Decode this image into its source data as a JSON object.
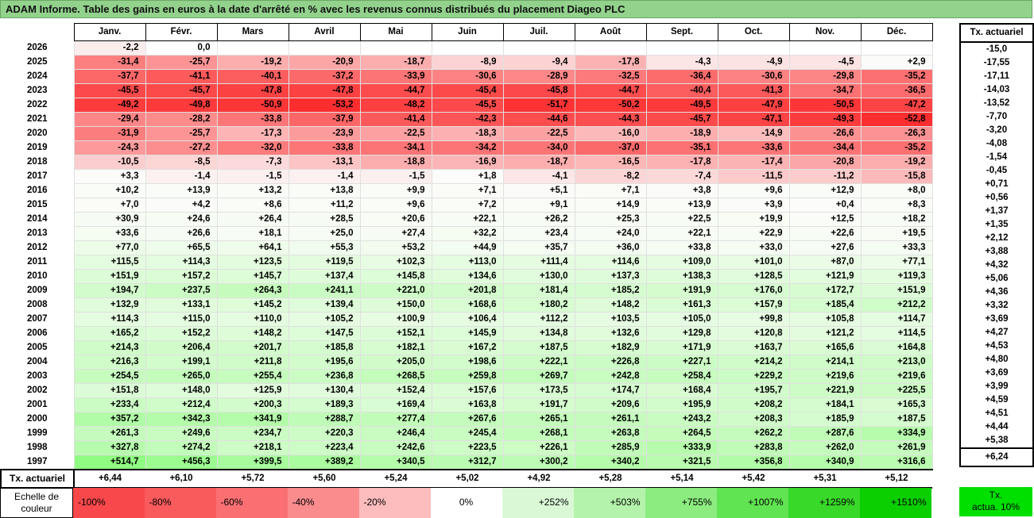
{
  "title": "ADAM Informe. Table des gains en euros à la date d'arrêté en % avec les revenus connus distribués du placement Diageo PLC",
  "months": [
    "Janv.",
    "Févr.",
    "Mars",
    "Avril",
    "Mai",
    "Juin",
    "Juil.",
    "Août",
    "Sept.",
    "Oct.",
    "Nov.",
    "Déc."
  ],
  "tx_header": "Tx. actuariel",
  "rows": [
    {
      "year": "2026",
      "vals": [
        "-2,2",
        "0,0",
        "",
        "",
        "",
        "",
        "",
        "",
        "",
        "",
        "",
        ""
      ],
      "tx": "-15,0"
    },
    {
      "year": "2025",
      "vals": [
        "-31,4",
        "-25,7",
        "-19,2",
        "-20,9",
        "-18,7",
        "-8,9",
        "-9,4",
        "-17,8",
        "-4,3",
        "-4,9",
        "-4,5",
        "+2,9"
      ],
      "tx": "-17,55"
    },
    {
      "year": "2024",
      "vals": [
        "-37,7",
        "-41,1",
        "-40,1",
        "-37,2",
        "-33,9",
        "-30,6",
        "-28,9",
        "-32,5",
        "-36,4",
        "-30,6",
        "-29,8",
        "-35,2"
      ],
      "tx": "-17,11"
    },
    {
      "year": "2023",
      "vals": [
        "-45,5",
        "-45,7",
        "-47,8",
        "-47,8",
        "-44,7",
        "-45,4",
        "-45,8",
        "-44,7",
        "-40,4",
        "-41,3",
        "-34,7",
        "-36,5"
      ],
      "tx": "-14,03"
    },
    {
      "year": "2022",
      "vals": [
        "-49,2",
        "-49,8",
        "-50,9",
        "-53,2",
        "-48,2",
        "-45,5",
        "-51,7",
        "-50,2",
        "-49,5",
        "-47,9",
        "-50,5",
        "-47,2"
      ],
      "tx": "-13,52"
    },
    {
      "year": "2021",
      "vals": [
        "-29,4",
        "-28,2",
        "-33,8",
        "-37,9",
        "-41,4",
        "-42,3",
        "-44,6",
        "-44,3",
        "-45,7",
        "-47,1",
        "-49,3",
        "-52,8"
      ],
      "tx": "-7,70"
    },
    {
      "year": "2020",
      "vals": [
        "-31,9",
        "-25,7",
        "-17,3",
        "-23,9",
        "-22,5",
        "-18,3",
        "-22,5",
        "-16,0",
        "-18,9",
        "-14,9",
        "-26,6",
        "-26,3"
      ],
      "tx": "-3,20"
    },
    {
      "year": "2019",
      "vals": [
        "-24,3",
        "-27,2",
        "-32,0",
        "-33,8",
        "-34,1",
        "-34,2",
        "-34,0",
        "-37,0",
        "-35,1",
        "-33,6",
        "-34,4",
        "-35,2"
      ],
      "tx": "-4,08"
    },
    {
      "year": "2018",
      "vals": [
        "-10,5",
        "-8,5",
        "-7,3",
        "-13,1",
        "-18,8",
        "-16,9",
        "-18,7",
        "-16,5",
        "-17,8",
        "-17,4",
        "-20,8",
        "-19,2"
      ],
      "tx": "-1,54"
    },
    {
      "year": "2017",
      "vals": [
        "+3,3",
        "-1,4",
        "-1,5",
        "-1,4",
        "-1,5",
        "+1,8",
        "-4,1",
        "-8,2",
        "-7,4",
        "-11,5",
        "-11,2",
        "-15,8"
      ],
      "tx": "-0,45"
    },
    {
      "year": "2016",
      "vals": [
        "+10,2",
        "+13,9",
        "+13,2",
        "+13,8",
        "+9,9",
        "+7,1",
        "+5,1",
        "+7,1",
        "+3,8",
        "+9,6",
        "+12,9",
        "+8,0"
      ],
      "tx": "+0,71"
    },
    {
      "year": "2015",
      "vals": [
        "+7,0",
        "+4,2",
        "+8,6",
        "+11,2",
        "+9,6",
        "+7,2",
        "+9,1",
        "+14,9",
        "+13,9",
        "+3,9",
        "+0,4",
        "+8,3"
      ],
      "tx": "+0,56"
    },
    {
      "year": "2014",
      "vals": [
        "+30,9",
        "+24,6",
        "+26,4",
        "+28,5",
        "+20,6",
        "+22,1",
        "+26,2",
        "+25,3",
        "+22,5",
        "+19,9",
        "+12,5",
        "+18,2"
      ],
      "tx": "+1,37"
    },
    {
      "year": "2013",
      "vals": [
        "+33,6",
        "+26,6",
        "+18,1",
        "+25,0",
        "+27,4",
        "+32,2",
        "+23,4",
        "+24,0",
        "+22,1",
        "+22,9",
        "+22,6",
        "+19,5"
      ],
      "tx": "+1,35"
    },
    {
      "year": "2012",
      "vals": [
        "+77,0",
        "+65,5",
        "+64,1",
        "+55,3",
        "+53,2",
        "+44,9",
        "+35,7",
        "+36,0",
        "+33,8",
        "+33,0",
        "+27,6",
        "+33,3"
      ],
      "tx": "+2,12"
    },
    {
      "year": "2011",
      "vals": [
        "+115,5",
        "+114,3",
        "+123,5",
        "+119,5",
        "+102,3",
        "+113,0",
        "+111,4",
        "+114,6",
        "+109,0",
        "+101,0",
        "+87,0",
        "+77,1"
      ],
      "tx": "+3,88"
    },
    {
      "year": "2010",
      "vals": [
        "+151,9",
        "+157,2",
        "+145,7",
        "+137,4",
        "+145,8",
        "+134,6",
        "+130,0",
        "+137,3",
        "+138,3",
        "+128,5",
        "+121,9",
        "+119,3"
      ],
      "tx": "+4,32"
    },
    {
      "year": "2009",
      "vals": [
        "+194,7",
        "+237,5",
        "+264,3",
        "+241,1",
        "+221,0",
        "+201,8",
        "+181,4",
        "+185,2",
        "+191,9",
        "+176,0",
        "+172,7",
        "+151,9"
      ],
      "tx": "+5,06"
    },
    {
      "year": "2008",
      "vals": [
        "+132,9",
        "+133,1",
        "+145,2",
        "+139,4",
        "+150,0",
        "+168,6",
        "+180,2",
        "+148,2",
        "+161,3",
        "+157,9",
        "+185,4",
        "+212,2"
      ],
      "tx": "+4,36"
    },
    {
      "year": "2007",
      "vals": [
        "+114,3",
        "+115,0",
        "+110,0",
        "+105,2",
        "+100,9",
        "+106,4",
        "+112,2",
        "+103,5",
        "+105,0",
        "+99,8",
        "+105,8",
        "+114,7"
      ],
      "tx": "+3,32"
    },
    {
      "year": "2006",
      "vals": [
        "+165,2",
        "+152,2",
        "+148,2",
        "+147,5",
        "+152,1",
        "+145,9",
        "+134,8",
        "+132,6",
        "+129,8",
        "+120,8",
        "+121,2",
        "+114,5"
      ],
      "tx": "+3,69"
    },
    {
      "year": "2005",
      "vals": [
        "+214,3",
        "+206,4",
        "+201,7",
        "+185,8",
        "+182,1",
        "+167,2",
        "+187,5",
        "+182,9",
        "+171,9",
        "+163,7",
        "+165,6",
        "+164,8"
      ],
      "tx": "+4,27"
    },
    {
      "year": "2004",
      "vals": [
        "+216,3",
        "+199,1",
        "+211,8",
        "+195,6",
        "+205,0",
        "+198,6",
        "+222,1",
        "+226,8",
        "+227,1",
        "+214,2",
        "+214,1",
        "+213,0"
      ],
      "tx": "+4,53"
    },
    {
      "year": "2003",
      "vals": [
        "+254,5",
        "+265,0",
        "+255,4",
        "+236,8",
        "+268,5",
        "+259,8",
        "+269,7",
        "+242,8",
        "+258,4",
        "+229,2",
        "+219,6",
        "+219,6"
      ],
      "tx": "+4,80"
    },
    {
      "year": "2002",
      "vals": [
        "+151,8",
        "+148,0",
        "+125,9",
        "+130,4",
        "+152,4",
        "+157,6",
        "+173,5",
        "+174,7",
        "+168,4",
        "+195,7",
        "+221,9",
        "+225,5"
      ],
      "tx": "+3,69"
    },
    {
      "year": "2001",
      "vals": [
        "+233,4",
        "+212,4",
        "+200,3",
        "+189,3",
        "+169,4",
        "+163,8",
        "+191,7",
        "+209,6",
        "+195,9",
        "+208,2",
        "+184,1",
        "+165,3"
      ],
      "tx": "+3,99"
    },
    {
      "year": "2000",
      "vals": [
        "+357,2",
        "+342,3",
        "+341,9",
        "+288,7",
        "+277,4",
        "+267,6",
        "+265,1",
        "+261,1",
        "+243,2",
        "+208,3",
        "+185,9",
        "+187,5"
      ],
      "tx": "+4,59"
    },
    {
      "year": "1999",
      "vals": [
        "+261,3",
        "+249,6",
        "+234,7",
        "+220,3",
        "+246,4",
        "+245,4",
        "+268,1",
        "+263,8",
        "+264,5",
        "+262,2",
        "+287,6",
        "+334,9"
      ],
      "tx": "+4,51"
    },
    {
      "year": "1998",
      "vals": [
        "+327,8",
        "+274,2",
        "+218,1",
        "+223,4",
        "+242,6",
        "+223,5",
        "+226,1",
        "+285,9",
        "+333,9",
        "+283,8",
        "+262,0",
        "+261,9"
      ],
      "tx": "+4,44"
    },
    {
      "year": "1997",
      "vals": [
        "+514,7",
        "+456,3",
        "+399,5",
        "+389,2",
        "+340,5",
        "+312,7",
        "+300,2",
        "+340,2",
        "+321,5",
        "+356,8",
        "+340,9",
        "+316,6"
      ],
      "tx": "+5,38"
    }
  ],
  "tx_row": {
    "label": "Tx. actuariel",
    "vals": [
      "+6,44",
      "+6,10",
      "+5,72",
      "+5,60",
      "+5,24",
      "+5,02",
      "+4,92",
      "+5,28",
      "+5,14",
      "+5,42",
      "+5,31",
      "+5,12"
    ],
    "tx": "+6,24"
  },
  "scale": {
    "label_line1": "Echelle de",
    "label_line2": "couleur",
    "items": [
      {
        "text": "-100%",
        "color": "#f8484b",
        "align": "left"
      },
      {
        "text": "-80%",
        "color": "#f95b5d",
        "align": "left"
      },
      {
        "text": "-60%",
        "color": "#fa7072",
        "align": "left"
      },
      {
        "text": "-40%",
        "color": "#fb8c8e",
        "align": "left"
      },
      {
        "text": "-20%",
        "color": "#fdbcbd",
        "align": "left"
      },
      {
        "text": "0%",
        "color": "#ffffff",
        "align": "center"
      },
      {
        "text": "+252%",
        "color": "#daf8d6",
        "align": "right"
      },
      {
        "text": "+503%",
        "color": "#b4f3ab",
        "align": "right"
      },
      {
        "text": "+755%",
        "color": "#8cec80",
        "align": "right"
      },
      {
        "text": "+1007%",
        "color": "#60e452",
        "align": "right"
      },
      {
        "text": "+1259%",
        "color": "#38d928",
        "align": "right"
      },
      {
        "text": "+1510%",
        "color": "#0bcf00",
        "align": "right"
      }
    ],
    "tx_line1": "Tx.",
    "tx_line2": "actua. 10%"
  }
}
